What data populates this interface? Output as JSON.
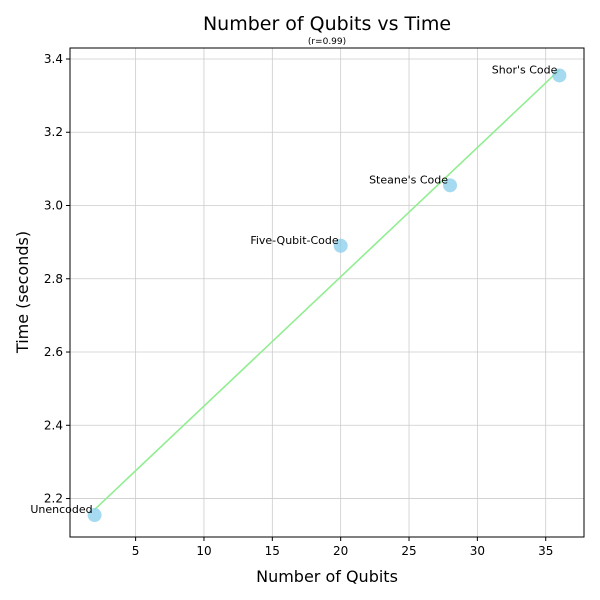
{
  "chart_data": {
    "type": "scatter",
    "title": "Number of Qubits vs Time",
    "subtitle": "(r=0.99)",
    "xlabel": "Number of Qubits",
    "ylabel": "Time (seconds)",
    "xlim": [
      0.2,
      37.8
    ],
    "ylim": [
      2.095,
      3.43
    ],
    "xticks": [
      5,
      10,
      15,
      20,
      25,
      30,
      35
    ],
    "yticks": [
      2.2,
      2.4,
      2.6,
      2.8,
      3.0,
      3.2,
      3.4
    ],
    "xtick_labels": [
      "5",
      "10",
      "15",
      "20",
      "25",
      "30",
      "35"
    ],
    "ytick_labels": [
      "2.2",
      "2.4",
      "2.6",
      "2.8",
      "3.0",
      "3.2",
      "3.4"
    ],
    "grid": true,
    "points": [
      {
        "label": "Unencoded",
        "x": 2,
        "y": 2.155
      },
      {
        "label": "Five-Qubit-Code",
        "x": 20,
        "y": 2.89
      },
      {
        "label": "Steane's Code",
        "x": 28,
        "y": 3.055
      },
      {
        "label": "Shor's Code",
        "x": 36,
        "y": 3.355
      }
    ],
    "trendline": {
      "x": [
        2,
        36
      ],
      "y": [
        2.17,
        3.37
      ]
    },
    "colors": {
      "point": "#87CEEB",
      "trendline": "#90EE90",
      "grid": "#cccccc"
    }
  }
}
